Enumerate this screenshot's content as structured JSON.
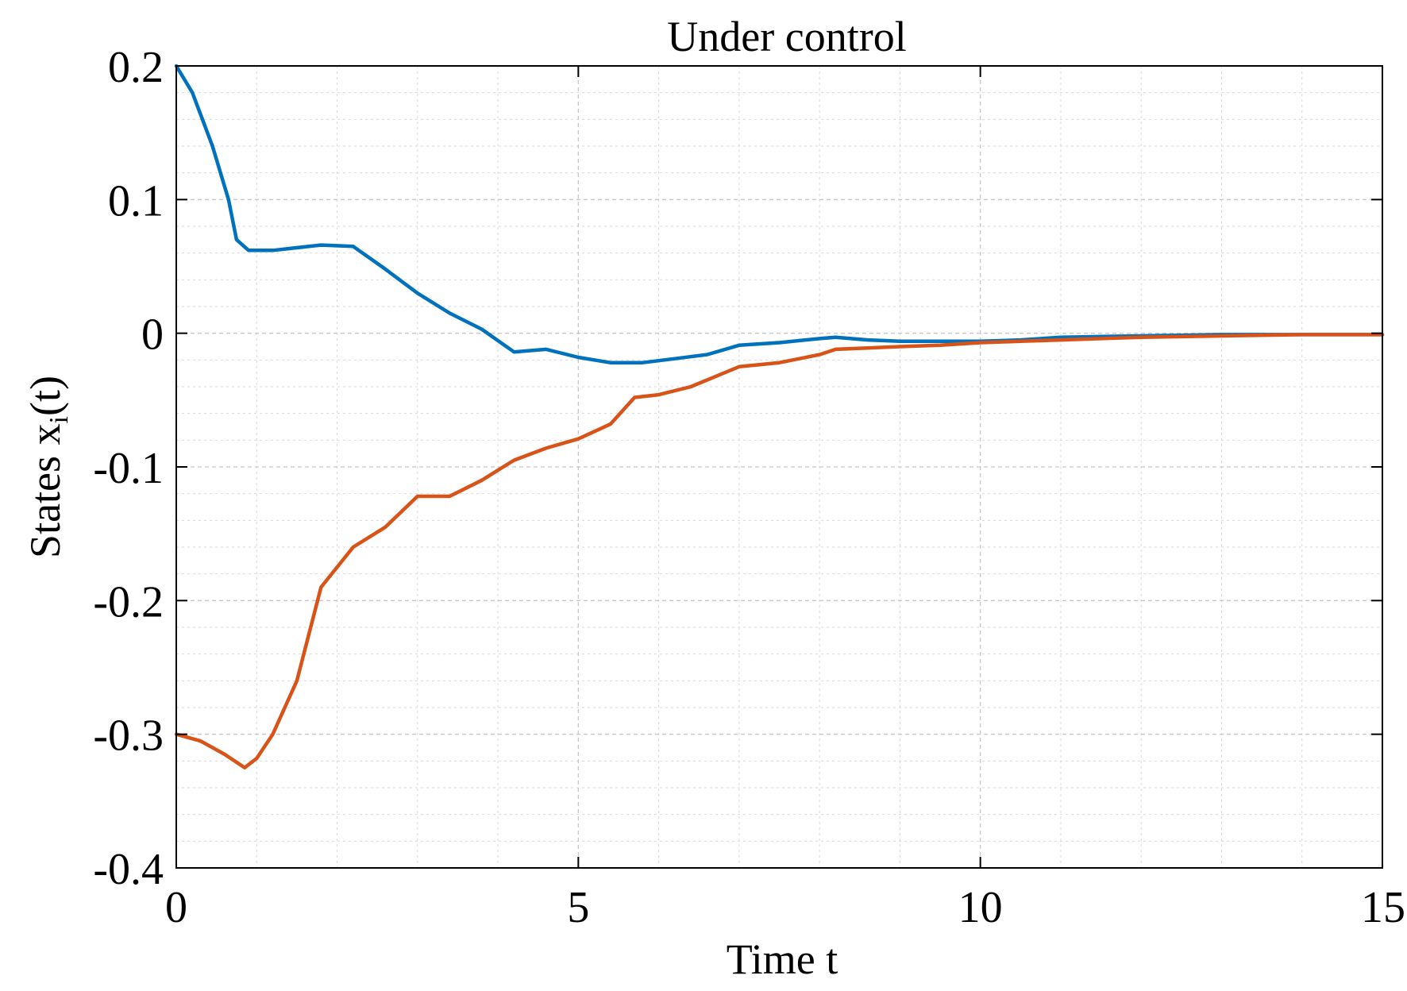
{
  "chart_data": {
    "type": "line",
    "title": "Under control",
    "xlabel": "Time t",
    "ylabel_main": "States x",
    "ylabel_sub": "i",
    "ylabel_tail": "(t)",
    "xlim": [
      0,
      15
    ],
    "ylim": [
      -0.4,
      0.2
    ],
    "xticks": [
      0,
      5,
      10,
      15
    ],
    "xtick_labels": [
      "0",
      "5",
      "10",
      "15"
    ],
    "yticks": [
      -0.4,
      -0.3,
      -0.2,
      -0.1,
      0,
      0.1,
      0.2
    ],
    "ytick_labels": [
      "-0.4",
      "-0.3",
      "-0.2",
      "-0.1",
      "0",
      "0.1",
      "0.2"
    ],
    "grid": true,
    "minor_grid": true,
    "series": [
      {
        "color": "#0072bd",
        "x": [
          0,
          0.2,
          0.45,
          0.65,
          0.75,
          0.9,
          1.2,
          1.8,
          2.2,
          2.6,
          3.0,
          3.4,
          3.8,
          4.2,
          4.6,
          5.0,
          5.4,
          5.8,
          6.2,
          6.6,
          7.0,
          7.5,
          8.0,
          8.2,
          8.6,
          9.0,
          9.5,
          10.0,
          10.5,
          11.0,
          12.0,
          13.0,
          14.0,
          15.0
        ],
        "y": [
          0.2,
          0.18,
          0.14,
          0.1,
          0.07,
          0.062,
          0.062,
          0.066,
          0.065,
          0.048,
          0.03,
          0.015,
          0.003,
          -0.014,
          -0.012,
          -0.018,
          -0.022,
          -0.022,
          -0.019,
          -0.016,
          -0.009,
          -0.007,
          -0.004,
          -0.003,
          -0.005,
          -0.006,
          -0.006,
          -0.006,
          -0.005,
          -0.003,
          -0.002,
          -0.001,
          -0.001,
          -0.001
        ]
      },
      {
        "color": "#d95319",
        "x": [
          0,
          0.3,
          0.6,
          0.85,
          1.0,
          1.2,
          1.5,
          1.8,
          2.2,
          2.6,
          3.0,
          3.4,
          3.8,
          4.2,
          4.6,
          5.0,
          5.4,
          5.7,
          6.0,
          6.4,
          6.8,
          7.0,
          7.5,
          8.0,
          8.2,
          8.6,
          9.0,
          9.5,
          10.0,
          10.5,
          11.0,
          12.0,
          13.0,
          14.0,
          15.0
        ],
        "y": [
          -0.3,
          -0.305,
          -0.315,
          -0.325,
          -0.318,
          -0.3,
          -0.26,
          -0.19,
          -0.16,
          -0.145,
          -0.122,
          -0.122,
          -0.11,
          -0.095,
          -0.086,
          -0.079,
          -0.068,
          -0.048,
          -0.046,
          -0.04,
          -0.03,
          -0.025,
          -0.022,
          -0.016,
          -0.012,
          -0.011,
          -0.01,
          -0.009,
          -0.007,
          -0.006,
          -0.005,
          -0.003,
          -0.002,
          -0.001,
          -0.001
        ]
      }
    ]
  }
}
